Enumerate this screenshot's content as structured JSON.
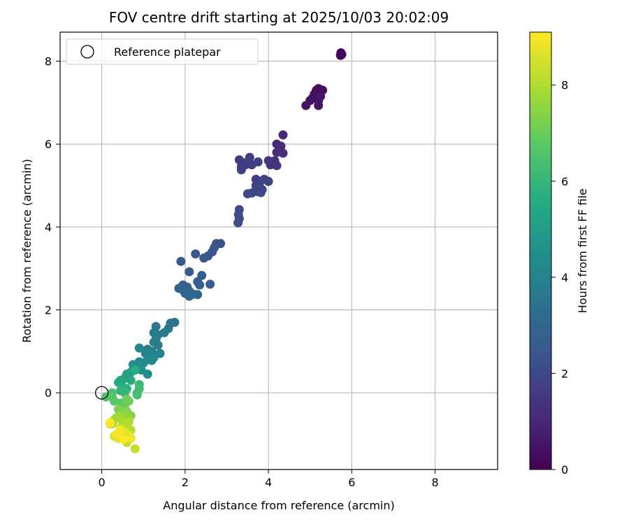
{
  "chart_data": {
    "type": "scatter",
    "title": "FOV centre drift starting at 2025/10/03 20:02:09",
    "xlabel": "Angular distance from reference (arcmin)",
    "ylabel": "Rotation from reference (arcmin)",
    "xlim": [
      -1.0,
      9.5
    ],
    "ylim": [
      -1.85,
      8.7
    ],
    "xticks": [
      0,
      2,
      4,
      6,
      8
    ],
    "yticks": [
      0,
      2,
      4,
      6,
      8
    ],
    "grid": true,
    "colormap": "viridis",
    "colorbar": {
      "label": "Hours from first FF file",
      "range": [
        0,
        9.1
      ],
      "ticks": [
        0,
        2,
        4,
        6,
        8
      ]
    },
    "legend": {
      "placement": "top-left",
      "entries": [
        {
          "label": "Reference platepar",
          "marker": "open-circle",
          "x": 0,
          "y": 0
        }
      ]
    },
    "series": [
      {
        "points": [
          {
            "x": 5.74,
            "y": 8.2,
            "c": 0.0
          },
          {
            "x": 5.76,
            "y": 8.16,
            "c": 0.05
          },
          {
            "x": 5.73,
            "y": 8.14,
            "c": 0.08
          },
          {
            "x": 5.15,
            "y": 7.3,
            "c": 0.3
          },
          {
            "x": 5.2,
            "y": 7.34,
            "c": 0.32
          },
          {
            "x": 5.3,
            "y": 7.3,
            "c": 0.35
          },
          {
            "x": 5.1,
            "y": 7.2,
            "c": 0.38
          },
          {
            "x": 5.05,
            "y": 7.1,
            "c": 0.4
          },
          {
            "x": 5.2,
            "y": 7.05,
            "c": 0.42
          },
          {
            "x": 5.0,
            "y": 7.05,
            "c": 0.45
          },
          {
            "x": 4.9,
            "y": 6.93,
            "c": 0.48
          },
          {
            "x": 5.2,
            "y": 6.93,
            "c": 0.5
          },
          {
            "x": 5.25,
            "y": 7.15,
            "c": 0.52
          },
          {
            "x": 4.35,
            "y": 6.22,
            "c": 1.0
          },
          {
            "x": 4.2,
            "y": 6.0,
            "c": 1.05
          },
          {
            "x": 4.3,
            "y": 5.95,
            "c": 1.1
          },
          {
            "x": 4.2,
            "y": 5.8,
            "c": 1.15
          },
          {
            "x": 4.35,
            "y": 5.78,
            "c": 1.2
          },
          {
            "x": 4.15,
            "y": 5.6,
            "c": 1.25
          },
          {
            "x": 4.05,
            "y": 5.5,
            "c": 1.3
          },
          {
            "x": 4.2,
            "y": 5.48,
            "c": 1.35
          },
          {
            "x": 4.0,
            "y": 5.6,
            "c": 1.4
          },
          {
            "x": 3.3,
            "y": 5.62,
            "c": 1.45
          },
          {
            "x": 3.4,
            "y": 5.55,
            "c": 1.5
          },
          {
            "x": 3.35,
            "y": 5.45,
            "c": 1.55
          },
          {
            "x": 3.45,
            "y": 5.5,
            "c": 1.6
          },
          {
            "x": 3.55,
            "y": 5.68,
            "c": 1.62
          },
          {
            "x": 3.6,
            "y": 5.5,
            "c": 1.65
          },
          {
            "x": 3.75,
            "y": 5.57,
            "c": 1.68
          },
          {
            "x": 3.35,
            "y": 5.38,
            "c": 1.7
          },
          {
            "x": 3.7,
            "y": 5.15,
            "c": 1.72
          },
          {
            "x": 3.8,
            "y": 5.1,
            "c": 1.75
          },
          {
            "x": 3.9,
            "y": 5.15,
            "c": 1.78
          },
          {
            "x": 4.0,
            "y": 5.1,
            "c": 1.8
          },
          {
            "x": 3.7,
            "y": 5.0,
            "c": 1.82
          },
          {
            "x": 3.8,
            "y": 4.95,
            "c": 1.85
          },
          {
            "x": 3.85,
            "y": 4.9,
            "c": 1.88
          },
          {
            "x": 3.7,
            "y": 4.88,
            "c": 1.9
          },
          {
            "x": 3.6,
            "y": 4.82,
            "c": 1.92
          },
          {
            "x": 3.75,
            "y": 4.85,
            "c": 1.95
          },
          {
            "x": 3.82,
            "y": 4.83,
            "c": 1.97
          },
          {
            "x": 3.5,
            "y": 4.8,
            "c": 1.98
          },
          {
            "x": 3.3,
            "y": 4.42,
            "c": 2.05
          },
          {
            "x": 3.28,
            "y": 4.3,
            "c": 2.1
          },
          {
            "x": 3.3,
            "y": 4.2,
            "c": 2.12
          },
          {
            "x": 3.27,
            "y": 4.1,
            "c": 2.15
          },
          {
            "x": 2.75,
            "y": 3.6,
            "c": 2.3
          },
          {
            "x": 2.85,
            "y": 3.6,
            "c": 2.32
          },
          {
            "x": 2.7,
            "y": 3.5,
            "c": 2.35
          },
          {
            "x": 2.65,
            "y": 3.4,
            "c": 2.4
          },
          {
            "x": 2.55,
            "y": 3.3,
            "c": 2.45
          },
          {
            "x": 2.45,
            "y": 3.25,
            "c": 2.5
          },
          {
            "x": 2.25,
            "y": 3.35,
            "c": 2.42
          },
          {
            "x": 1.9,
            "y": 3.17,
            "c": 2.55
          },
          {
            "x": 2.1,
            "y": 2.92,
            "c": 2.6
          },
          {
            "x": 2.4,
            "y": 2.83,
            "c": 2.65
          },
          {
            "x": 2.3,
            "y": 2.68,
            "c": 2.7
          },
          {
            "x": 2.35,
            "y": 2.6,
            "c": 2.72
          },
          {
            "x": 2.6,
            "y": 2.62,
            "c": 2.75
          },
          {
            "x": 1.95,
            "y": 2.6,
            "c": 2.78
          },
          {
            "x": 2.05,
            "y": 2.55,
            "c": 2.8
          },
          {
            "x": 1.85,
            "y": 2.52,
            "c": 2.82
          },
          {
            "x": 1.95,
            "y": 2.48,
            "c": 2.85
          },
          {
            "x": 2.1,
            "y": 2.45,
            "c": 2.88
          },
          {
            "x": 2.0,
            "y": 2.4,
            "c": 2.9
          },
          {
            "x": 2.2,
            "y": 2.38,
            "c": 2.92
          },
          {
            "x": 2.3,
            "y": 2.37,
            "c": 2.95
          },
          {
            "x": 2.1,
            "y": 2.33,
            "c": 2.98
          },
          {
            "x": 1.75,
            "y": 1.7,
            "c": 3.5
          },
          {
            "x": 1.65,
            "y": 1.68,
            "c": 3.55
          },
          {
            "x": 1.6,
            "y": 1.55,
            "c": 3.6
          },
          {
            "x": 1.3,
            "y": 1.6,
            "c": 3.65
          },
          {
            "x": 1.25,
            "y": 1.45,
            "c": 3.7
          },
          {
            "x": 1.5,
            "y": 1.45,
            "c": 3.72
          },
          {
            "x": 1.35,
            "y": 1.4,
            "c": 3.75
          },
          {
            "x": 1.3,
            "y": 1.3,
            "c": 3.8
          },
          {
            "x": 1.25,
            "y": 1.22,
            "c": 3.85
          },
          {
            "x": 1.35,
            "y": 1.15,
            "c": 3.88
          },
          {
            "x": 1.1,
            "y": 1.05,
            "c": 3.9
          },
          {
            "x": 1.2,
            "y": 1.0,
            "c": 3.95
          },
          {
            "x": 1.4,
            "y": 0.95,
            "c": 4.0
          },
          {
            "x": 1.05,
            "y": 0.95,
            "c": 4.05
          },
          {
            "x": 1.15,
            "y": 0.9,
            "c": 4.1
          },
          {
            "x": 1.25,
            "y": 0.85,
            "c": 4.15
          },
          {
            "x": 0.9,
            "y": 1.08,
            "c": 4.2
          },
          {
            "x": 1.1,
            "y": 0.8,
            "c": 4.25
          },
          {
            "x": 1.2,
            "y": 0.78,
            "c": 4.28
          },
          {
            "x": 1.0,
            "y": 0.72,
            "c": 4.3
          },
          {
            "x": 0.9,
            "y": 0.75,
            "c": 4.35
          },
          {
            "x": 0.75,
            "y": 0.68,
            "c": 4.4
          },
          {
            "x": 0.85,
            "y": 0.6,
            "c": 4.45
          },
          {
            "x": 1.1,
            "y": 0.45,
            "c": 4.5
          },
          {
            "x": 0.95,
            "y": 0.55,
            "c": 4.55
          },
          {
            "x": 0.7,
            "y": 0.5,
            "c": 5.0
          },
          {
            "x": 0.6,
            "y": 0.45,
            "c": 5.1
          },
          {
            "x": 0.55,
            "y": 0.35,
            "c": 5.2
          },
          {
            "x": 0.45,
            "y": 0.3,
            "c": 5.3
          },
          {
            "x": 0.4,
            "y": 0.25,
            "c": 5.4
          },
          {
            "x": 0.7,
            "y": 0.3,
            "c": 5.5
          },
          {
            "x": 0.8,
            "y": 0.55,
            "c": 5.6
          },
          {
            "x": 0.5,
            "y": 0.15,
            "c": 5.7
          },
          {
            "x": 0.6,
            "y": 0.1,
            "c": 5.8
          },
          {
            "x": 0.45,
            "y": 0.05,
            "c": 5.9
          },
          {
            "x": 0.55,
            "y": 0.0,
            "c": 6.0
          },
          {
            "x": 0.9,
            "y": 0.2,
            "c": 6.1
          },
          {
            "x": 0.9,
            "y": 0.1,
            "c": 6.2
          },
          {
            "x": 0.85,
            "y": 0.0,
            "c": 6.3
          },
          {
            "x": 0.85,
            "y": -0.05,
            "c": 6.35
          },
          {
            "x": 0.25,
            "y": 0.0,
            "c": 6.4
          },
          {
            "x": 0.1,
            "y": -0.1,
            "c": 6.5
          },
          {
            "x": 0.25,
            "y": -0.1,
            "c": 6.6
          },
          {
            "x": 0.3,
            "y": -0.2,
            "c": 6.7
          },
          {
            "x": 0.45,
            "y": -0.25,
            "c": 6.8
          },
          {
            "x": 0.55,
            "y": -0.3,
            "c": 6.9
          },
          {
            "x": 0.6,
            "y": -0.15,
            "c": 7.0
          },
          {
            "x": 0.65,
            "y": -0.2,
            "c": 7.1
          },
          {
            "x": 0.5,
            "y": -0.45,
            "c": 7.2
          },
          {
            "x": 0.4,
            "y": -0.4,
            "c": 7.3
          },
          {
            "x": 0.6,
            "y": -0.45,
            "c": 7.4
          },
          {
            "x": 0.7,
            "y": -0.55,
            "c": 7.5
          },
          {
            "x": 0.55,
            "y": -0.6,
            "c": 7.6
          },
          {
            "x": 0.45,
            "y": -0.55,
            "c": 7.7
          },
          {
            "x": 0.35,
            "y": -0.6,
            "c": 7.75
          },
          {
            "x": 0.3,
            "y": -0.65,
            "c": 7.8
          },
          {
            "x": 0.25,
            "y": -0.75,
            "c": 7.85
          },
          {
            "x": 0.5,
            "y": -0.7,
            "c": 7.9
          },
          {
            "x": 0.65,
            "y": -0.7,
            "c": 8.0
          },
          {
            "x": 0.6,
            "y": -0.85,
            "c": 8.05
          },
          {
            "x": 0.7,
            "y": -0.9,
            "c": 8.1
          },
          {
            "x": 0.5,
            "y": -0.95,
            "c": 8.15
          },
          {
            "x": 0.55,
            "y": -1.1,
            "c": 8.2
          },
          {
            "x": 0.6,
            "y": -1.2,
            "c": 8.25
          },
          {
            "x": 0.8,
            "y": -1.35,
            "c": 8.3
          },
          {
            "x": 0.45,
            "y": -0.85,
            "c": 8.35
          },
          {
            "x": 0.4,
            "y": -1.0,
            "c": 8.4
          },
          {
            "x": 0.2,
            "y": -0.75,
            "c": 8.5
          },
          {
            "x": 0.3,
            "y": -1.05,
            "c": 8.6
          },
          {
            "x": 0.4,
            "y": -1.1,
            "c": 8.65
          },
          {
            "x": 0.5,
            "y": -1.05,
            "c": 8.7
          },
          {
            "x": 0.55,
            "y": -0.95,
            "c": 8.75
          },
          {
            "x": 0.6,
            "y": -1.0,
            "c": 8.8
          },
          {
            "x": 0.65,
            "y": -1.05,
            "c": 8.85
          },
          {
            "x": 0.7,
            "y": -1.1,
            "c": 8.9
          },
          {
            "x": 0.45,
            "y": -0.9,
            "c": 8.95
          },
          {
            "x": 0.35,
            "y": -1.0,
            "c": 9.0
          },
          {
            "x": 0.2,
            "y": -0.72,
            "c": 9.05
          },
          {
            "x": 0.52,
            "y": -1.12,
            "c": 9.1
          }
        ]
      }
    ]
  }
}
